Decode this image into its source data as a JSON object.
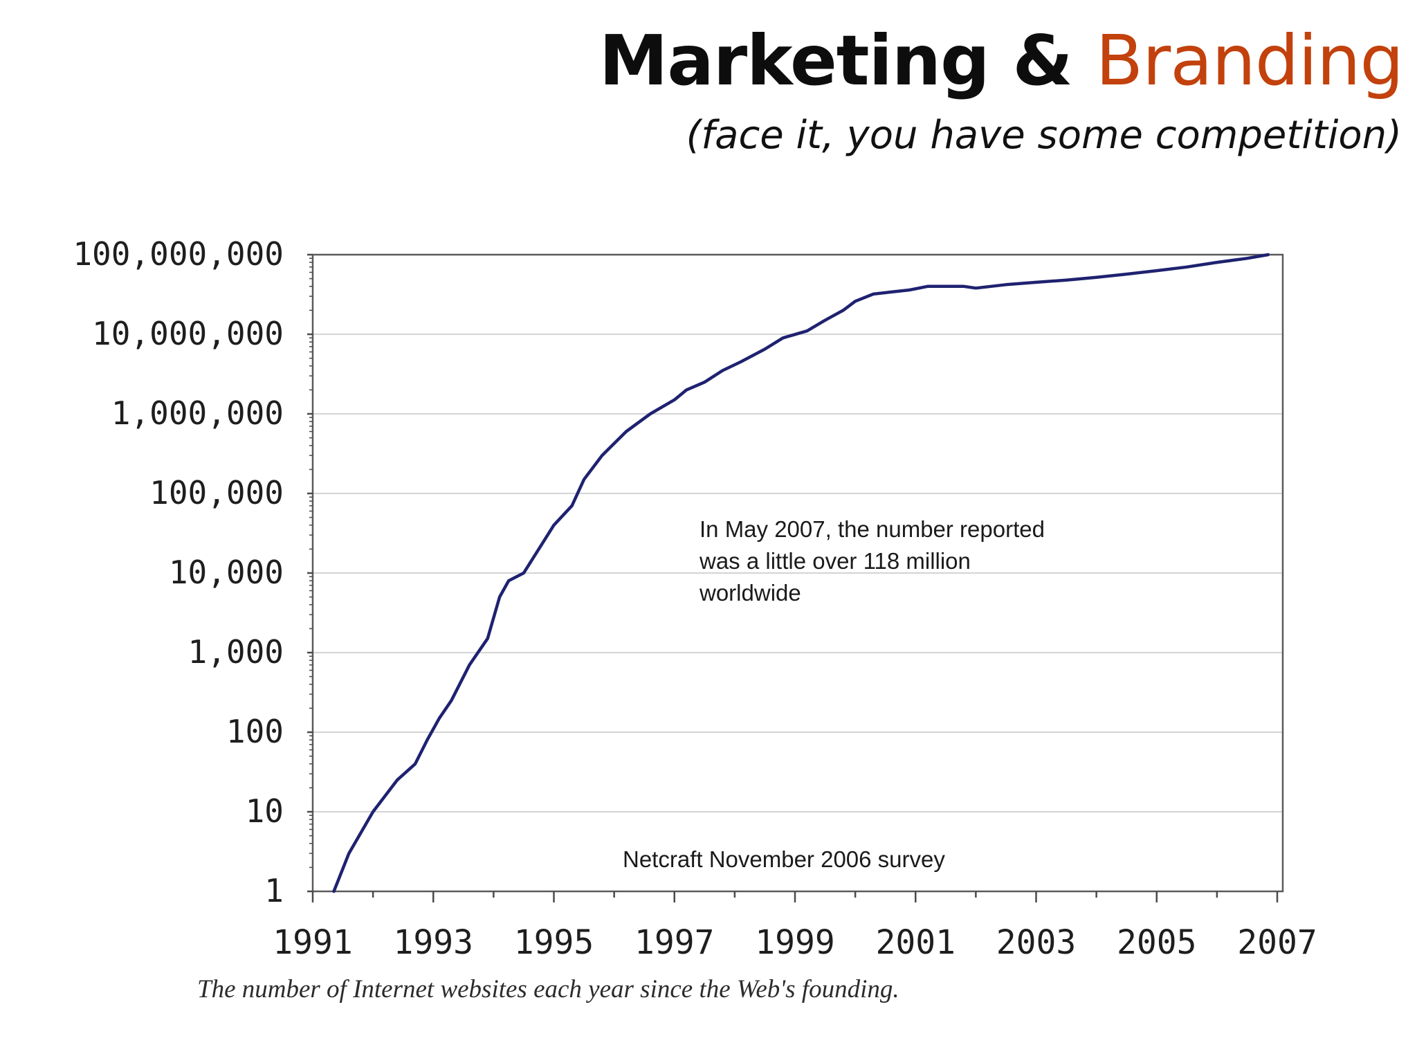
{
  "slide": {
    "title_main": "Marketing &",
    "title_accent": "Branding",
    "subtitle": "(face it, you have some competition)",
    "caption": "The number of Internet websites each year since the Web's founding."
  },
  "colors": {
    "title": "#0d0d0d",
    "accent": "#c2410c",
    "series_line": "#1f2270",
    "grid": "#d4d4d4",
    "axis": "#4a4a4a"
  },
  "chart_data": {
    "type": "line",
    "title": "",
    "xlabel": "",
    "ylabel": "",
    "x_scale": "linear",
    "y_scale": "log",
    "xlim": [
      1991,
      2007
    ],
    "ylim": [
      1,
      100000000
    ],
    "x_ticks": [
      1991,
      1993,
      1995,
      1997,
      1999,
      2001,
      2003,
      2005,
      2007
    ],
    "x_tick_labels": [
      "1991",
      "1993",
      "1995",
      "1997",
      "1999",
      "2001",
      "2003",
      "2005",
      "2007"
    ],
    "y_ticks": [
      1,
      10,
      100,
      1000,
      10000,
      100000,
      1000000,
      10000000,
      100000000
    ],
    "y_tick_labels": [
      "1",
      "10",
      "100",
      "1,000",
      "10,000",
      "100,000",
      "1,000,000",
      "10,000,000",
      "100,000,000"
    ],
    "grid": "horizontal",
    "legend": "none",
    "series": [
      {
        "x": [
          1991.35,
          1991.6,
          1992.0,
          1992.4,
          1992.7,
          1992.9,
          1993.1,
          1993.3,
          1993.6,
          1993.9,
          1994.1,
          1994.25,
          1994.5,
          1994.75,
          1995.0,
          1995.3,
          1995.5,
          1995.8,
          1996.2,
          1996.6,
          1997.0,
          1997.2,
          1997.5,
          1997.8,
          1998.1,
          1998.5,
          1998.8,
          1999.2,
          1999.5,
          1999.8,
          2000.0,
          2000.3,
          2000.6,
          2000.9,
          2001.2,
          2001.5,
          2001.8,
          2002.0,
          2002.5,
          2003.0,
          2003.5,
          2004.0,
          2004.5,
          2005.0,
          2005.5,
          2006.0,
          2006.5,
          2006.85
        ],
        "y": [
          1,
          3,
          10,
          25,
          40,
          80,
          150,
          250,
          700,
          1500,
          5000,
          8000,
          10000,
          20000,
          40000,
          70000,
          150000,
          300000,
          600000,
          1000000,
          1500000,
          2000000,
          2500000,
          3500000,
          4500000,
          6500000,
          9000000,
          11000000,
          15000000,
          20000000,
          26000000,
          32000000,
          34000000,
          36000000,
          40000000,
          40000000,
          40000000,
          38000000,
          42000000,
          45000000,
          48000000,
          52000000,
          57000000,
          63000000,
          70000000,
          80000000,
          90000000,
          100000000
        ]
      }
    ],
    "annotations": [
      {
        "lines": [
          "In May 2007, the number reported",
          "was a little over 118 million",
          "worldwide"
        ]
      },
      {
        "lines": [
          "Netcraft November 2006 survey"
        ]
      }
    ]
  }
}
